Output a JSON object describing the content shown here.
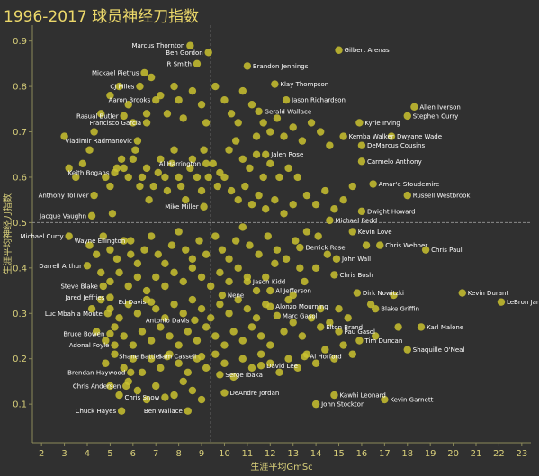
{
  "chart_data": {
    "type": "scatter",
    "title": "1996-2017 球员神经刀指数",
    "xlabel": "生涯平均GmSc",
    "ylabel": "生涯平均神经刀指数",
    "xlim": [
      1.6,
      23.4
    ],
    "ylim": [
      0.015,
      0.935
    ],
    "x_ticks": [
      2,
      3,
      4,
      5,
      6,
      7,
      8,
      9,
      10,
      11,
      12,
      13,
      14,
      15,
      16,
      17,
      18,
      19,
      20,
      21,
      22,
      23
    ],
    "y_ticks": [
      0.1,
      0.2,
      0.3,
      0.4,
      0.5,
      0.6,
      0.7,
      0.8,
      0.9
    ],
    "reference_lines": {
      "x": 9.4,
      "y": 0.5
    },
    "grid": false,
    "colors": {
      "background": "#303030",
      "point": "#c9c12f",
      "text": "#d8cf7a",
      "title": "#ecd86a",
      "label": "#ffffff",
      "reference_line": "#8a8a8a"
    },
    "labeled_points": [
      {
        "name": "Gilbert Arenas",
        "x": 15.0,
        "y": 0.88
      },
      {
        "name": "Marcus Thornton",
        "x": 8.5,
        "y": 0.89
      },
      {
        "name": "Ben Gordon",
        "x": 9.3,
        "y": 0.875
      },
      {
        "name": "JR Smith",
        "x": 8.8,
        "y": 0.85
      },
      {
        "name": "Brandon Jennings",
        "x": 11.0,
        "y": 0.845
      },
      {
        "name": "Mickael Pietrus",
        "x": 6.5,
        "y": 0.83
      },
      {
        "name": "Klay Thompson",
        "x": 12.2,
        "y": 0.805
      },
      {
        "name": "CJ Miles",
        "x": 6.3,
        "y": 0.8
      },
      {
        "name": "Jason Richardson",
        "x": 12.7,
        "y": 0.77
      },
      {
        "name": "Aaron Brooks",
        "x": 7.0,
        "y": 0.77
      },
      {
        "name": "Gerald Wallace",
        "x": 11.5,
        "y": 0.745
      },
      {
        "name": "Allen Iverson",
        "x": 18.3,
        "y": 0.755
      },
      {
        "name": "Rasual Butler",
        "x": 5.6,
        "y": 0.735
      },
      {
        "name": "Stephen Curry",
        "x": 18.0,
        "y": 0.735
      },
      {
        "name": "Kyrie Irving",
        "x": 15.9,
        "y": 0.72
      },
      {
        "name": "Francisco Garcia",
        "x": 6.6,
        "y": 0.72
      },
      {
        "name": "Kemba Walker",
        "x": 15.2,
        "y": 0.69
      },
      {
        "name": "Dwyane Wade",
        "x": 17.3,
        "y": 0.69
      },
      {
        "name": "Vladimir Radmanovic",
        "x": 6.2,
        "y": 0.68
      },
      {
        "name": "DeMarcus Cousins",
        "x": 16.0,
        "y": 0.67
      },
      {
        "name": "Jalen Rose",
        "x": 11.8,
        "y": 0.65
      },
      {
        "name": "Carmelo Anthony",
        "x": 16.0,
        "y": 0.635
      },
      {
        "name": "Al Harrington",
        "x": 9.2,
        "y": 0.63
      },
      {
        "name": "Keith Bogans",
        "x": 5.2,
        "y": 0.61
      },
      {
        "name": "Amar'e Stoudemire",
        "x": 16.5,
        "y": 0.585
      },
      {
        "name": "Anthony Tolliver",
        "x": 4.3,
        "y": 0.56
      },
      {
        "name": "Russell Westbrook",
        "x": 18.0,
        "y": 0.56
      },
      {
        "name": "Mike Miller",
        "x": 9.1,
        "y": 0.535
      },
      {
        "name": "Dwight Howard",
        "x": 16.0,
        "y": 0.525
      },
      {
        "name": "Jacque Vaughn",
        "x": 4.2,
        "y": 0.515
      },
      {
        "name": "Michael Redd",
        "x": 14.6,
        "y": 0.505
      },
      {
        "name": "Kevin Love",
        "x": 15.6,
        "y": 0.48
      },
      {
        "name": "Michael Curry",
        "x": 3.2,
        "y": 0.47
      },
      {
        "name": "Wayne Ellington",
        "x": 5.9,
        "y": 0.46
      },
      {
        "name": "Chris Webber",
        "x": 16.8,
        "y": 0.45
      },
      {
        "name": "Derrick Rose",
        "x": 13.3,
        "y": 0.445
      },
      {
        "name": "Chris Paul",
        "x": 18.8,
        "y": 0.44
      },
      {
        "name": "John Wall",
        "x": 14.9,
        "y": 0.42
      },
      {
        "name": "Darrell Arthur",
        "x": 4.0,
        "y": 0.405
      },
      {
        "name": "Chris Bosh",
        "x": 14.8,
        "y": 0.385
      },
      {
        "name": "Jason Kidd",
        "x": 11.0,
        "y": 0.37
      },
      {
        "name": "Steve Blake",
        "x": 4.7,
        "y": 0.36
      },
      {
        "name": "Al Jefferson",
        "x": 12.0,
        "y": 0.35
      },
      {
        "name": "Dirk Nowitzki",
        "x": 15.8,
        "y": 0.345
      },
      {
        "name": "Kevin Durant",
        "x": 20.4,
        "y": 0.345
      },
      {
        "name": "Nene",
        "x": 9.9,
        "y": 0.34
      },
      {
        "name": "Jared Jeffries",
        "x": 5.0,
        "y": 0.335
      },
      {
        "name": "Ed Davis",
        "x": 6.8,
        "y": 0.325
      },
      {
        "name": "LeBron James",
        "x": 22.1,
        "y": 0.325
      },
      {
        "name": "Alonzo Mourning",
        "x": 12.0,
        "y": 0.315
      },
      {
        "name": "Blake Griffin",
        "x": 16.6,
        "y": 0.31
      },
      {
        "name": "Luc Mbah a Moute",
        "x": 4.9,
        "y": 0.3
      },
      {
        "name": "Marc Gasol",
        "x": 12.3,
        "y": 0.295
      },
      {
        "name": "Antonio Davis",
        "x": 8.7,
        "y": 0.285
      },
      {
        "name": "Elton Brand",
        "x": 14.2,
        "y": 0.27
      },
      {
        "name": "Karl Malone",
        "x": 18.6,
        "y": 0.27
      },
      {
        "name": "Pau Gasol",
        "x": 15.0,
        "y": 0.26
      },
      {
        "name": "Bruce Bowen",
        "x": 5.0,
        "y": 0.255
      },
      {
        "name": "Tim Duncan",
        "x": 15.9,
        "y": 0.24
      },
      {
        "name": "Adonal Foyle",
        "x": 5.2,
        "y": 0.23
      },
      {
        "name": "Shaquille O'Neal",
        "x": 18.0,
        "y": 0.22
      },
      {
        "name": "Shane Battier",
        "x": 7.5,
        "y": 0.205
      },
      {
        "name": "Sam Cassell",
        "x": 9.0,
        "y": 0.205
      },
      {
        "name": "Al Horford",
        "x": 13.5,
        "y": 0.205
      },
      {
        "name": "David Lee",
        "x": 11.6,
        "y": 0.185
      },
      {
        "name": "Brendan Haywood",
        "x": 5.9,
        "y": 0.17
      },
      {
        "name": "Serge Ibaka",
        "x": 9.8,
        "y": 0.165
      },
      {
        "name": "Chris Andersen",
        "x": 5.7,
        "y": 0.14
      },
      {
        "name": "DeAndre Jordan",
        "x": 10.0,
        "y": 0.125
      },
      {
        "name": "Kawhi Leonard",
        "x": 14.8,
        "y": 0.12
      },
      {
        "name": "Chris Snow",
        "x": 7.4,
        "y": 0.115
      },
      {
        "name": "Kevin Garnett",
        "x": 17.0,
        "y": 0.11
      },
      {
        "name": "John Stockton",
        "x": 14.0,
        "y": 0.1
      },
      {
        "name": "Chuck Hayes",
        "x": 5.5,
        "y": 0.085
      },
      {
        "name": "Ben Wallace",
        "x": 8.4,
        "y": 0.085
      }
    ],
    "unlabeled_points": [
      [
        3.0,
        0.69
      ],
      [
        3.2,
        0.62
      ],
      [
        3.5,
        0.6
      ],
      [
        3.8,
        0.63
      ],
      [
        4.1,
        0.66
      ],
      [
        4.3,
        0.7
      ],
      [
        4.6,
        0.74
      ],
      [
        4.8,
        0.6
      ],
      [
        5.0,
        0.58
      ],
      [
        5.1,
        0.52
      ],
      [
        5.3,
        0.62
      ],
      [
        5.5,
        0.64
      ],
      [
        5.6,
        0.62
      ],
      [
        5.8,
        0.6
      ],
      [
        6.0,
        0.64
      ],
      [
        6.1,
        0.66
      ],
      [
        6.3,
        0.58
      ],
      [
        6.4,
        0.6
      ],
      [
        6.6,
        0.62
      ],
      [
        6.7,
        0.55
      ],
      [
        6.9,
        0.58
      ],
      [
        7.1,
        0.61
      ],
      [
        7.2,
        0.64
      ],
      [
        7.4,
        0.6
      ],
      [
        7.5,
        0.57
      ],
      [
        7.7,
        0.63
      ],
      [
        7.8,
        0.66
      ],
      [
        8.0,
        0.6
      ],
      [
        8.1,
        0.58
      ],
      [
        8.3,
        0.55
      ],
      [
        8.5,
        0.62
      ],
      [
        8.6,
        0.64
      ],
      [
        8.8,
        0.6
      ],
      [
        9.0,
        0.57
      ],
      [
        9.1,
        0.66
      ],
      [
        9.3,
        0.6
      ],
      [
        9.5,
        0.63
      ],
      [
        9.7,
        0.58
      ],
      [
        9.8,
        0.61
      ],
      [
        10.0,
        0.6
      ],
      [
        5.0,
        0.78
      ],
      [
        5.4,
        0.8
      ],
      [
        5.8,
        0.76
      ],
      [
        6.0,
        0.72
      ],
      [
        6.6,
        0.74
      ],
      [
        6.8,
        0.82
      ],
      [
        7.2,
        0.78
      ],
      [
        7.5,
        0.74
      ],
      [
        7.8,
        0.8
      ],
      [
        8.0,
        0.77
      ],
      [
        8.2,
        0.73
      ],
      [
        8.6,
        0.79
      ],
      [
        9.0,
        0.76
      ],
      [
        9.2,
        0.72
      ],
      [
        9.6,
        0.8
      ],
      [
        10.0,
        0.77
      ],
      [
        10.3,
        0.74
      ],
      [
        10.6,
        0.72
      ],
      [
        10.8,
        0.79
      ],
      [
        11.2,
        0.76
      ],
      [
        11.4,
        0.69
      ],
      [
        11.7,
        0.72
      ],
      [
        12.0,
        0.7
      ],
      [
        12.3,
        0.73
      ],
      [
        12.6,
        0.69
      ],
      [
        13.0,
        0.71
      ],
      [
        13.4,
        0.68
      ],
      [
        13.8,
        0.72
      ],
      [
        14.2,
        0.7
      ],
      [
        14.6,
        0.67
      ],
      [
        10.2,
        0.66
      ],
      [
        10.5,
        0.68
      ],
      [
        10.8,
        0.64
      ],
      [
        11.1,
        0.62
      ],
      [
        11.4,
        0.65
      ],
      [
        11.7,
        0.6
      ],
      [
        12.0,
        0.63
      ],
      [
        12.4,
        0.6
      ],
      [
        12.8,
        0.62
      ],
      [
        13.2,
        0.6
      ],
      [
        10.3,
        0.57
      ],
      [
        10.6,
        0.55
      ],
      [
        10.9,
        0.58
      ],
      [
        11.2,
        0.54
      ],
      [
        11.5,
        0.56
      ],
      [
        11.8,
        0.53
      ],
      [
        12.2,
        0.55
      ],
      [
        12.6,
        0.52
      ],
      [
        13.0,
        0.54
      ],
      [
        13.6,
        0.56
      ],
      [
        14.0,
        0.54
      ],
      [
        14.4,
        0.57
      ],
      [
        14.8,
        0.53
      ],
      [
        15.2,
        0.55
      ],
      [
        15.6,
        0.58
      ],
      [
        4.1,
        0.45
      ],
      [
        4.4,
        0.43
      ],
      [
        4.7,
        0.47
      ],
      [
        5.0,
        0.44
      ],
      [
        5.3,
        0.42
      ],
      [
        5.6,
        0.46
      ],
      [
        5.9,
        0.43
      ],
      [
        6.2,
        0.41
      ],
      [
        6.5,
        0.44
      ],
      [
        6.8,
        0.47
      ],
      [
        7.1,
        0.43
      ],
      [
        7.4,
        0.41
      ],
      [
        7.7,
        0.45
      ],
      [
        8.0,
        0.48
      ],
      [
        8.3,
        0.44
      ],
      [
        8.6,
        0.42
      ],
      [
        8.9,
        0.46
      ],
      [
        9.2,
        0.43
      ],
      [
        9.6,
        0.47
      ],
      [
        9.9,
        0.44
      ],
      [
        10.2,
        0.42
      ],
      [
        10.5,
        0.46
      ],
      [
        10.8,
        0.49
      ],
      [
        11.1,
        0.45
      ],
      [
        11.5,
        0.43
      ],
      [
        11.9,
        0.47
      ],
      [
        12.3,
        0.44
      ],
      [
        12.7,
        0.42
      ],
      [
        13.1,
        0.46
      ],
      [
        13.6,
        0.48
      ],
      [
        4.6,
        0.39
      ],
      [
        5.0,
        0.37
      ],
      [
        5.4,
        0.39
      ],
      [
        5.8,
        0.36
      ],
      [
        6.2,
        0.38
      ],
      [
        6.6,
        0.35
      ],
      [
        7.0,
        0.38
      ],
      [
        7.4,
        0.36
      ],
      [
        7.8,
        0.39
      ],
      [
        8.2,
        0.37
      ],
      [
        8.6,
        0.4
      ],
      [
        9.0,
        0.38
      ],
      [
        9.4,
        0.36
      ],
      [
        9.8,
        0.39
      ],
      [
        10.2,
        0.37
      ],
      [
        10.6,
        0.4
      ],
      [
        11.0,
        0.38
      ],
      [
        11.4,
        0.35
      ],
      [
        11.8,
        0.38
      ],
      [
        12.2,
        0.41
      ],
      [
        4.2,
        0.31
      ],
      [
        4.6,
        0.33
      ],
      [
        5.0,
        0.31
      ],
      [
        5.4,
        0.29
      ],
      [
        5.8,
        0.32
      ],
      [
        6.2,
        0.3
      ],
      [
        6.6,
        0.33
      ],
      [
        7.0,
        0.31
      ],
      [
        7.4,
        0.29
      ],
      [
        7.8,
        0.32
      ],
      [
        8.2,
        0.3
      ],
      [
        8.6,
        0.33
      ],
      [
        9.0,
        0.31
      ],
      [
        9.4,
        0.29
      ],
      [
        9.8,
        0.32
      ],
      [
        10.2,
        0.3
      ],
      [
        10.6,
        0.33
      ],
      [
        11.0,
        0.31
      ],
      [
        11.4,
        0.29
      ],
      [
        11.8,
        0.32
      ],
      [
        4.4,
        0.26
      ],
      [
        4.8,
        0.24
      ],
      [
        5.2,
        0.27
      ],
      [
        5.6,
        0.25
      ],
      [
        6.0,
        0.23
      ],
      [
        6.4,
        0.26
      ],
      [
        6.8,
        0.24
      ],
      [
        7.2,
        0.27
      ],
      [
        7.6,
        0.25
      ],
      [
        8.0,
        0.23
      ],
      [
        8.4,
        0.26
      ],
      [
        8.8,
        0.24
      ],
      [
        9.2,
        0.27
      ],
      [
        9.6,
        0.25
      ],
      [
        10.0,
        0.23
      ],
      [
        10.4,
        0.26
      ],
      [
        10.8,
        0.24
      ],
      [
        11.2,
        0.27
      ],
      [
        11.6,
        0.25
      ],
      [
        12.0,
        0.23
      ],
      [
        4.8,
        0.19
      ],
      [
        5.2,
        0.21
      ],
      [
        5.6,
        0.18
      ],
      [
        6.0,
        0.2
      ],
      [
        6.4,
        0.17
      ],
      [
        6.8,
        0.2
      ],
      [
        7.2,
        0.18
      ],
      [
        7.6,
        0.21
      ],
      [
        8.0,
        0.19
      ],
      [
        8.4,
        0.17
      ],
      [
        8.8,
        0.2
      ],
      [
        9.2,
        0.18
      ],
      [
        9.6,
        0.21
      ],
      [
        10.0,
        0.19
      ],
      [
        10.4,
        0.16
      ],
      [
        10.8,
        0.2
      ],
      [
        11.2,
        0.18
      ],
      [
        11.6,
        0.21
      ],
      [
        12.0,
        0.19
      ],
      [
        12.4,
        0.17
      ],
      [
        12.8,
        0.2
      ],
      [
        13.2,
        0.18
      ],
      [
        13.6,
        0.21
      ],
      [
        14.0,
        0.19
      ],
      [
        14.4,
        0.22
      ],
      [
        14.8,
        0.2
      ],
      [
        15.2,
        0.23
      ],
      [
        15.6,
        0.21
      ],
      [
        5.0,
        0.14
      ],
      [
        5.4,
        0.12
      ],
      [
        5.8,
        0.15
      ],
      [
        6.2,
        0.13
      ],
      [
        6.6,
        0.11
      ],
      [
        7.0,
        0.14
      ],
      [
        7.8,
        0.12
      ],
      [
        8.2,
        0.15
      ],
      [
        8.6,
        0.13
      ],
      [
        9.0,
        0.11
      ],
      [
        12.6,
        0.26
      ],
      [
        13.0,
        0.28
      ],
      [
        13.4,
        0.25
      ],
      [
        13.8,
        0.29
      ],
      [
        14.2,
        0.31
      ],
      [
        14.6,
        0.28
      ],
      [
        15.0,
        0.31
      ],
      [
        15.4,
        0.29
      ],
      [
        13.0,
        0.34
      ],
      [
        13.5,
        0.37
      ],
      [
        14.0,
        0.4
      ],
      [
        14.5,
        0.43
      ],
      [
        13.3,
        0.4
      ],
      [
        12.8,
        0.33
      ],
      [
        16.4,
        0.32
      ],
      [
        17.4,
        0.34
      ],
      [
        16.6,
        0.25
      ],
      [
        17.6,
        0.27
      ],
      [
        16.2,
        0.45
      ],
      [
        14.1,
        0.47
      ]
    ]
  }
}
